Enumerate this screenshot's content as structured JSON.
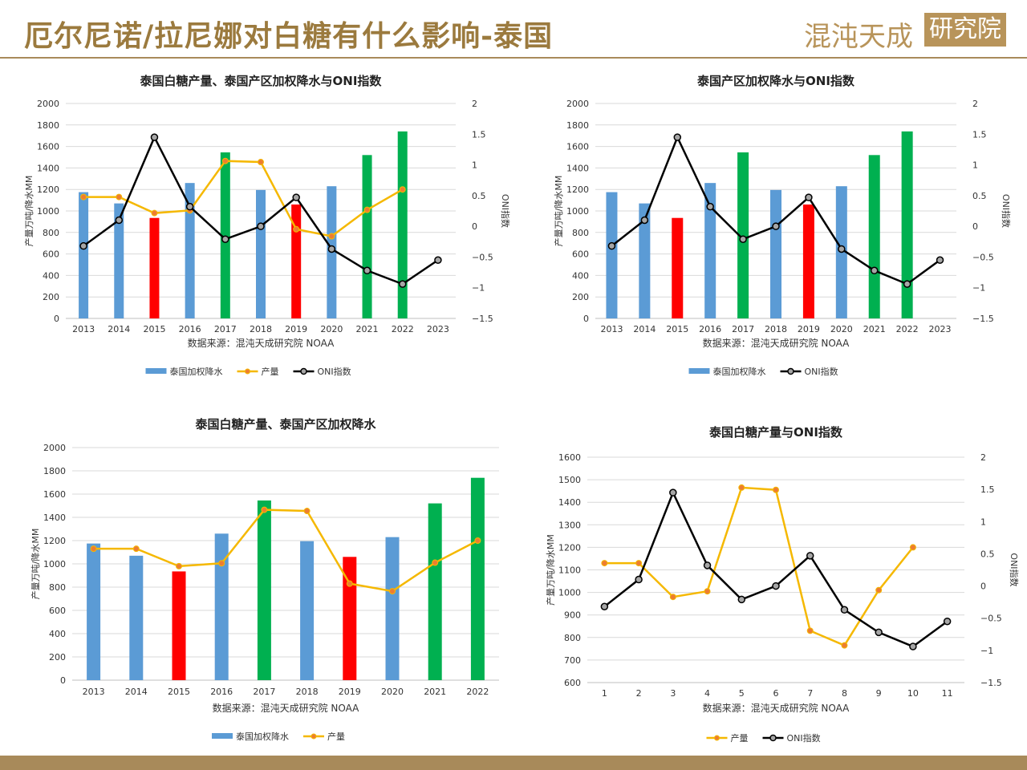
{
  "page": {
    "title": "厄尔尼诺/拉尼娜对白糖有什么影响-泰国",
    "logo_text": "混沌天成",
    "logo_box": "研究院"
  },
  "colors": {
    "blue": "#5b9bd5",
    "red": "#ff0000",
    "green": "#00b050",
    "yellow": "#f5b800",
    "black": "#000000",
    "brand": "#a88a5a"
  },
  "chart_data": [
    {
      "type": "bar",
      "title": "泰国白糖产量、泰国产区加权降水与ONI指数",
      "categories": [
        "2013",
        "2014",
        "2015",
        "2016",
        "2017",
        "2018",
        "2019",
        "2020",
        "2021",
        "2022",
        "2023"
      ],
      "y_left_label": "产量万吨/降水MM",
      "y_right_label": "ONI指数",
      "y_left_lim": [
        0,
        2000
      ],
      "y_right_lim": [
        -1.5,
        2
      ],
      "source": "数据来源：混沌天成研究院 NOAA",
      "series": [
        {
          "name": "泰国加权降水",
          "type": "bar",
          "axis": "left",
          "values": [
            1175,
            1070,
            935,
            1260,
            1545,
            1195,
            1060,
            1230,
            1520,
            1740,
            null
          ],
          "colors": [
            "blue",
            "blue",
            "red",
            "blue",
            "green",
            "blue",
            "red",
            "blue",
            "green",
            "green",
            null
          ]
        },
        {
          "name": "产量",
          "type": "line",
          "axis": "left",
          "values": [
            1130,
            1130,
            980,
            1005,
            1465,
            1455,
            830,
            765,
            1010,
            1200,
            null
          ]
        },
        {
          "name": "ONI指数",
          "type": "line",
          "axis": "right",
          "values": [
            -0.32,
            0.1,
            1.45,
            0.32,
            -0.21,
            0.0,
            0.47,
            -0.37,
            -0.72,
            -0.94,
            -0.55
          ]
        }
      ]
    },
    {
      "type": "bar",
      "title": "泰国产区加权降水与ONI指数",
      "categories": [
        "2013",
        "2014",
        "2015",
        "2016",
        "2017",
        "2018",
        "2019",
        "2020",
        "2021",
        "2022",
        "2023"
      ],
      "y_left_label": "产量万吨/降水MM",
      "y_right_label": "ONI指数",
      "y_left_lim": [
        0,
        2000
      ],
      "y_right_lim": [
        -1.5,
        2
      ],
      "source": "数据来源：混沌天成研究院 NOAA",
      "series": [
        {
          "name": "泰国加权降水",
          "type": "bar",
          "axis": "left",
          "values": [
            1175,
            1070,
            935,
            1260,
            1545,
            1195,
            1060,
            1230,
            1520,
            1740,
            null
          ],
          "colors": [
            "blue",
            "blue",
            "red",
            "blue",
            "green",
            "blue",
            "red",
            "blue",
            "green",
            "green",
            null
          ]
        },
        {
          "name": "ONI指数",
          "type": "line",
          "axis": "right",
          "values": [
            -0.32,
            0.1,
            1.45,
            0.32,
            -0.21,
            0.0,
            0.47,
            -0.37,
            -0.72,
            -0.94,
            -0.55
          ]
        }
      ]
    },
    {
      "type": "bar",
      "title": "泰国白糖产量、泰国产区加权降水",
      "categories": [
        "2013",
        "2014",
        "2015",
        "2016",
        "2017",
        "2018",
        "2019",
        "2020",
        "2021",
        "2022"
      ],
      "y_left_label": "产量万吨/降水MM",
      "y_left_lim": [
        0,
        2000
      ],
      "source": "数据来源：混沌天成研究院 NOAA",
      "series": [
        {
          "name": "泰国加权降水",
          "type": "bar",
          "axis": "left",
          "values": [
            1175,
            1070,
            935,
            1260,
            1545,
            1195,
            1060,
            1230,
            1520,
            1740
          ],
          "colors": [
            "blue",
            "blue",
            "red",
            "blue",
            "green",
            "blue",
            "red",
            "blue",
            "green",
            "green"
          ]
        },
        {
          "name": "产量",
          "type": "line",
          "axis": "left",
          "values": [
            1130,
            1130,
            980,
            1005,
            1465,
            1455,
            830,
            765,
            1010,
            1200
          ]
        }
      ]
    },
    {
      "type": "line",
      "title": "泰国白糖产量与ONI指数",
      "categories": [
        "1",
        "2",
        "3",
        "4",
        "5",
        "6",
        "7",
        "8",
        "9",
        "10",
        "11"
      ],
      "y_left_label": "产量万吨/降水MM",
      "y_right_label": "ONI指数",
      "y_left_lim": [
        600,
        1600
      ],
      "y_right_lim": [
        -1.5,
        2
      ],
      "source": "数据来源：混沌天成研究院 NOAA",
      "series": [
        {
          "name": "产量",
          "type": "line",
          "axis": "left",
          "values": [
            1130,
            1130,
            980,
            1005,
            1465,
            1455,
            830,
            765,
            1010,
            1200,
            null
          ]
        },
        {
          "name": "ONI指数",
          "type": "line",
          "axis": "right",
          "values": [
            -0.32,
            0.1,
            1.45,
            0.32,
            -0.21,
            0.0,
            0.47,
            -0.37,
            -0.72,
            -0.94,
            -0.55
          ]
        }
      ]
    }
  ]
}
